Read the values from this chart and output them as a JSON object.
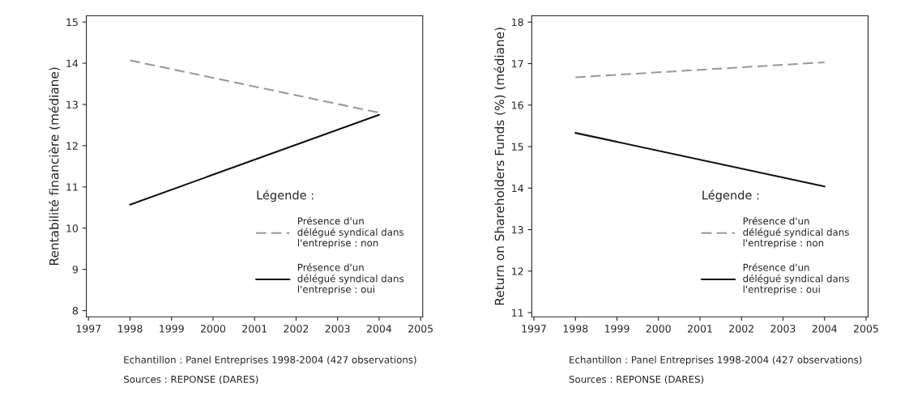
{
  "chart_data": [
    {
      "type": "line",
      "ylabel": "Rentabilité financière (médiane)",
      "x": [
        "1998",
        "2004"
      ],
      "xlim": [
        "1996-12-13",
        "2005-01-19"
      ],
      "xticks": [
        "1997",
        "1998",
        "1999",
        "2000",
        "2001",
        "2002",
        "2003",
        "2004",
        "2005"
      ],
      "ylim": [
        7.85,
        15.15
      ],
      "yticks": [
        8,
        9,
        10,
        11,
        12,
        13,
        14,
        15
      ],
      "legend": "center right",
      "legend_title": "Légende :",
      "grid": false,
      "series": [
        {
          "name": "Présence d'un\ndélégué syndical dans\nl'entreprise : non",
          "color": "#999999",
          "line_style": "dashed",
          "values": [
            14.07,
            12.8
          ]
        },
        {
          "name": "Présence d'un\ndélégué syndical dans\nl'entreprise : oui",
          "color": "#111111",
          "line_style": "solid",
          "values": [
            10.57,
            12.75
          ]
        }
      ],
      "annotations": [
        "Echantillon : Panel Entreprises 1998-2004 (427 observations)",
        "Sources : REPONSE (DARES)"
      ]
    },
    {
      "type": "line",
      "ylabel": "Return on Shareholders Funds (%) (médiane)",
      "x": [
        "1998",
        "2004"
      ],
      "xlim": [
        "1996-12-13",
        "2005-01-19"
      ],
      "xticks": [
        "1997",
        "1998",
        "1999",
        "2000",
        "2001",
        "2002",
        "2003",
        "2004",
        "2005"
      ],
      "ylim": [
        10.9,
        18.15
      ],
      "yticks": [
        11,
        12,
        13,
        14,
        15,
        16,
        17,
        18
      ],
      "legend": "center right",
      "legend_title": "Légende :",
      "grid": false,
      "series": [
        {
          "name": "Présence d'un\ndélégué syndical dans\nl'entreprise : non",
          "color": "#999999",
          "line_style": "dashed",
          "values": [
            16.67,
            17.03
          ]
        },
        {
          "name": "Présence d'un\ndélégué syndical dans\nl'entreprise : oui",
          "color": "#111111",
          "line_style": "solid",
          "values": [
            15.33,
            14.04
          ]
        }
      ],
      "annotations": [
        "Echantillon : Panel Entreprises 1998-2004 (427 observations)",
        "Sources : REPONSE (DARES)"
      ]
    }
  ]
}
